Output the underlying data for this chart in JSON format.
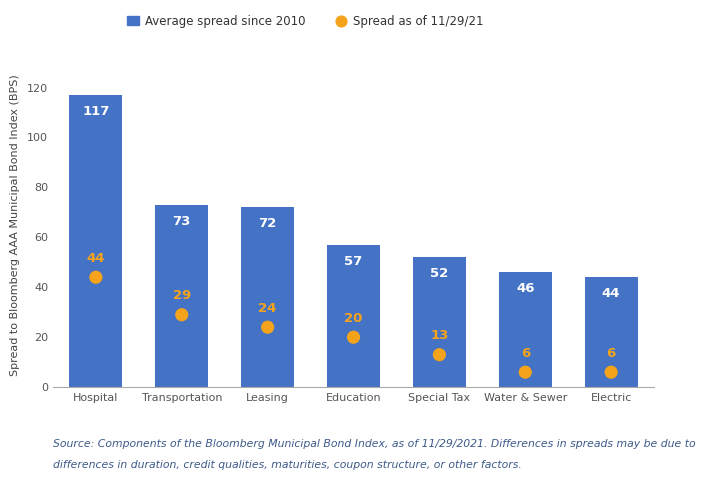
{
  "categories": [
    "Hospital",
    "Transportation",
    "Leasing",
    "Education",
    "Special Tax",
    "Water & Sewer",
    "Electric"
  ],
  "avg_spreads": [
    117,
    73,
    72,
    57,
    52,
    46,
    44
  ],
  "current_spreads": [
    44,
    29,
    24,
    20,
    13,
    6,
    6
  ],
  "bar_color": "#4472C4",
  "dot_color": "#F5A31A",
  "bar_label_color": "#FFFFFF",
  "dot_label_color": "#F5A31A",
  "ylabel": "Spread to Bloomberg AAA Municipal Bond Index (BPS)",
  "ylim": [
    0,
    130
  ],
  "yticks": [
    0,
    20,
    40,
    60,
    80,
    100,
    120
  ],
  "legend_bar_label": "Average spread since 2010",
  "legend_dot_label": "Spread as of 11/29/21",
  "footnote_line1": "Source: Components of the Bloomberg Municipal Bond Index, as of 11/29/2021. Differences in spreads may be due to",
  "footnote_line2": "differences in duration, credit qualities, maturities, coupon structure, or other factors.",
  "background_color": "#FFFFFF",
  "bar_width": 0.62,
  "label_fontsize": 9.5,
  "tick_fontsize": 8,
  "footnote_fontsize": 7.8,
  "dot_size": 90
}
